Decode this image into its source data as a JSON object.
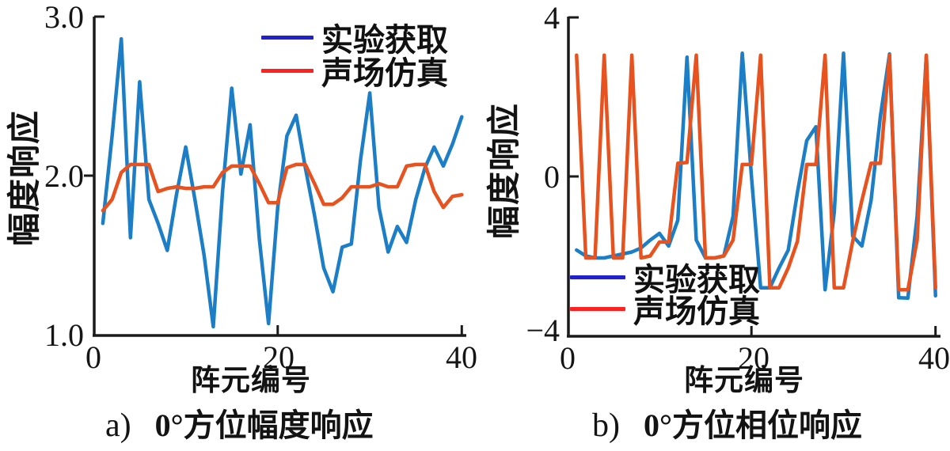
{
  "figure_background": "#ffffff",
  "axis_color": "#1a1a1a",
  "chart_data": [
    {
      "type": "line",
      "panel": "a)",
      "title": "0°方位幅度响应",
      "xlabel": "阵元编号",
      "ylabel": "幅度响应",
      "xlim": [
        0,
        40
      ],
      "ylim": [
        1.0,
        3.0
      ],
      "xtick_labels": [
        "0",
        "20",
        "40"
      ],
      "ytick_labels": [
        "3.0",
        "2.0",
        "1.0"
      ],
      "grid": false,
      "legend_position": "top-right-inside",
      "x": [
        1,
        2,
        3,
        4,
        5,
        6,
        7,
        8,
        9,
        10,
        11,
        12,
        13,
        14,
        15,
        16,
        17,
        18,
        19,
        20,
        21,
        22,
        23,
        24,
        25,
        26,
        27,
        28,
        29,
        30,
        31,
        32,
        33,
        34,
        35,
        36,
        37,
        38,
        39,
        40
      ],
      "series": [
        {
          "name": "实验获取",
          "line_color": "#1b7ec6",
          "legend_color": "#2121cc",
          "values": [
            1.7,
            2.25,
            2.86,
            1.61,
            2.59,
            1.85,
            1.7,
            1.53,
            1.88,
            2.18,
            1.85,
            1.5,
            1.05,
            1.9,
            2.55,
            2.01,
            2.32,
            1.6,
            1.07,
            1.8,
            2.25,
            2.38,
            2.05,
            1.75,
            1.42,
            1.27,
            1.55,
            1.57,
            2.1,
            2.52,
            1.8,
            1.52,
            1.68,
            1.58,
            1.85,
            2.05,
            2.18,
            2.06,
            2.2,
            2.37
          ]
        },
        {
          "name": "声场仿真",
          "line_color": "#e8521f",
          "legend_color": "#ff2020",
          "values": [
            1.78,
            1.85,
            2.02,
            2.07,
            2.07,
            2.07,
            1.9,
            1.92,
            1.93,
            1.92,
            1.92,
            1.93,
            1.93,
            2.02,
            2.06,
            2.06,
            2.06,
            1.95,
            1.83,
            1.83,
            2.05,
            2.07,
            2.07,
            1.95,
            1.82,
            1.82,
            1.86,
            1.93,
            1.93,
            1.93,
            1.95,
            1.93,
            1.93,
            2.06,
            2.07,
            2.07,
            1.9,
            1.8,
            1.87,
            1.88
          ]
        }
      ]
    },
    {
      "type": "line",
      "panel": "b)",
      "title": "0°方位相位响应",
      "xlabel": "阵元编号",
      "ylabel": "幅度响应",
      "xlim": [
        0,
        40
      ],
      "ylim": [
        -4,
        4
      ],
      "xtick_labels": [
        "0",
        "20",
        "40"
      ],
      "ytick_labels": [
        "4",
        "0",
        "−4"
      ],
      "grid": false,
      "legend_position": "bottom-left-inside",
      "x": [
        1,
        2,
        3,
        4,
        5,
        6,
        7,
        8,
        9,
        10,
        11,
        12,
        13,
        14,
        15,
        16,
        17,
        18,
        19,
        20,
        21,
        22,
        23,
        24,
        25,
        26,
        27,
        28,
        29,
        30,
        31,
        32,
        33,
        34,
        35,
        36,
        37,
        38,
        39,
        40
      ],
      "series": [
        {
          "name": "实验获取",
          "line_color": "#1b7ec6",
          "legend_color": "#2121cc",
          "values": [
            -1.85,
            -2.0,
            -2.05,
            -2.05,
            -2.0,
            -1.95,
            -1.9,
            -1.8,
            -1.6,
            -1.43,
            -1.75,
            -1.1,
            3.0,
            -1.6,
            -2.05,
            -2.05,
            -2.0,
            -1.0,
            3.1,
            0.0,
            -2.8,
            -2.8,
            -2.3,
            -1.85,
            -0.4,
            0.9,
            1.25,
            -2.85,
            -0.9,
            3.1,
            -1.5,
            -1.75,
            -0.6,
            1.5,
            3.08,
            -3.05,
            -3.06,
            -1.0,
            3.04,
            -3.0
          ]
        },
        {
          "name": "声场仿真",
          "line_color": "#e8521f",
          "legend_color": "#ff2020",
          "values": [
            3.05,
            -2.05,
            -2.05,
            3.05,
            -2.05,
            -2.05,
            3.05,
            -2.05,
            -2.0,
            -1.65,
            -1.65,
            0.33,
            0.35,
            3.05,
            -2.05,
            -2.05,
            -2.0,
            -1.6,
            0.3,
            0.3,
            3.05,
            -2.8,
            -2.8,
            -2.3,
            -1.63,
            0.3,
            0.3,
            3.05,
            -2.8,
            -2.8,
            -1.63,
            -0.6,
            0.33,
            0.33,
            3.05,
            -2.85,
            -2.85,
            -1.6,
            3.05,
            -2.8
          ]
        }
      ]
    }
  ]
}
